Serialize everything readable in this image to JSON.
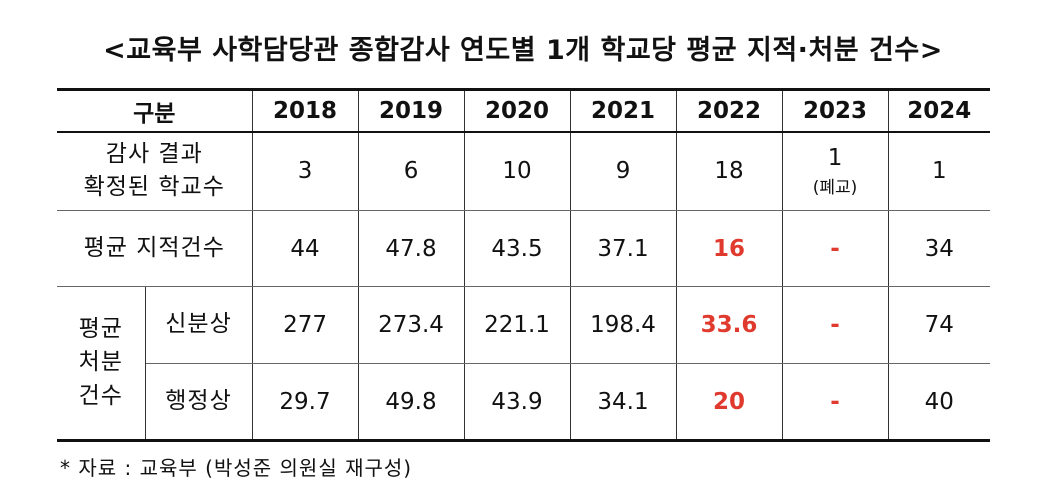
{
  "title": "<교육부 사학담당관 종합감사 연도별 1개 학교당 평균 지적·처분 건수>",
  "table": {
    "header_label": "구분",
    "years": [
      "2018",
      "2019",
      "2020",
      "2021",
      "2022",
      "2023",
      "2024"
    ],
    "row_schools": {
      "label_line1": "감사 결과",
      "label_line2": "확정된 학교수",
      "values": [
        "3",
        "6",
        "10",
        "9",
        "18",
        "1",
        "1"
      ],
      "note_2023": "(폐교)"
    },
    "row_findings": {
      "label": "평균 지적건수",
      "values": [
        "44",
        "47.8",
        "43.5",
        "37.1",
        "16",
        "-",
        "34"
      ]
    },
    "group_label_line1": "평균",
    "group_label_line2": "처분",
    "group_label_line3": "건수",
    "row_personal": {
      "label": "신분상",
      "values": [
        "277",
        "273.4",
        "221.1",
        "198.4",
        "33.6",
        "-",
        "74"
      ]
    },
    "row_admin": {
      "label": "행정상",
      "values": [
        "29.7",
        "49.8",
        "43.9",
        "34.1",
        "20",
        "-",
        "40"
      ]
    }
  },
  "source": "* 자료 : 교육부 (박성준 의원실 재구성)",
  "colors": {
    "highlight": "#e03a2e",
    "text": "#111111"
  }
}
